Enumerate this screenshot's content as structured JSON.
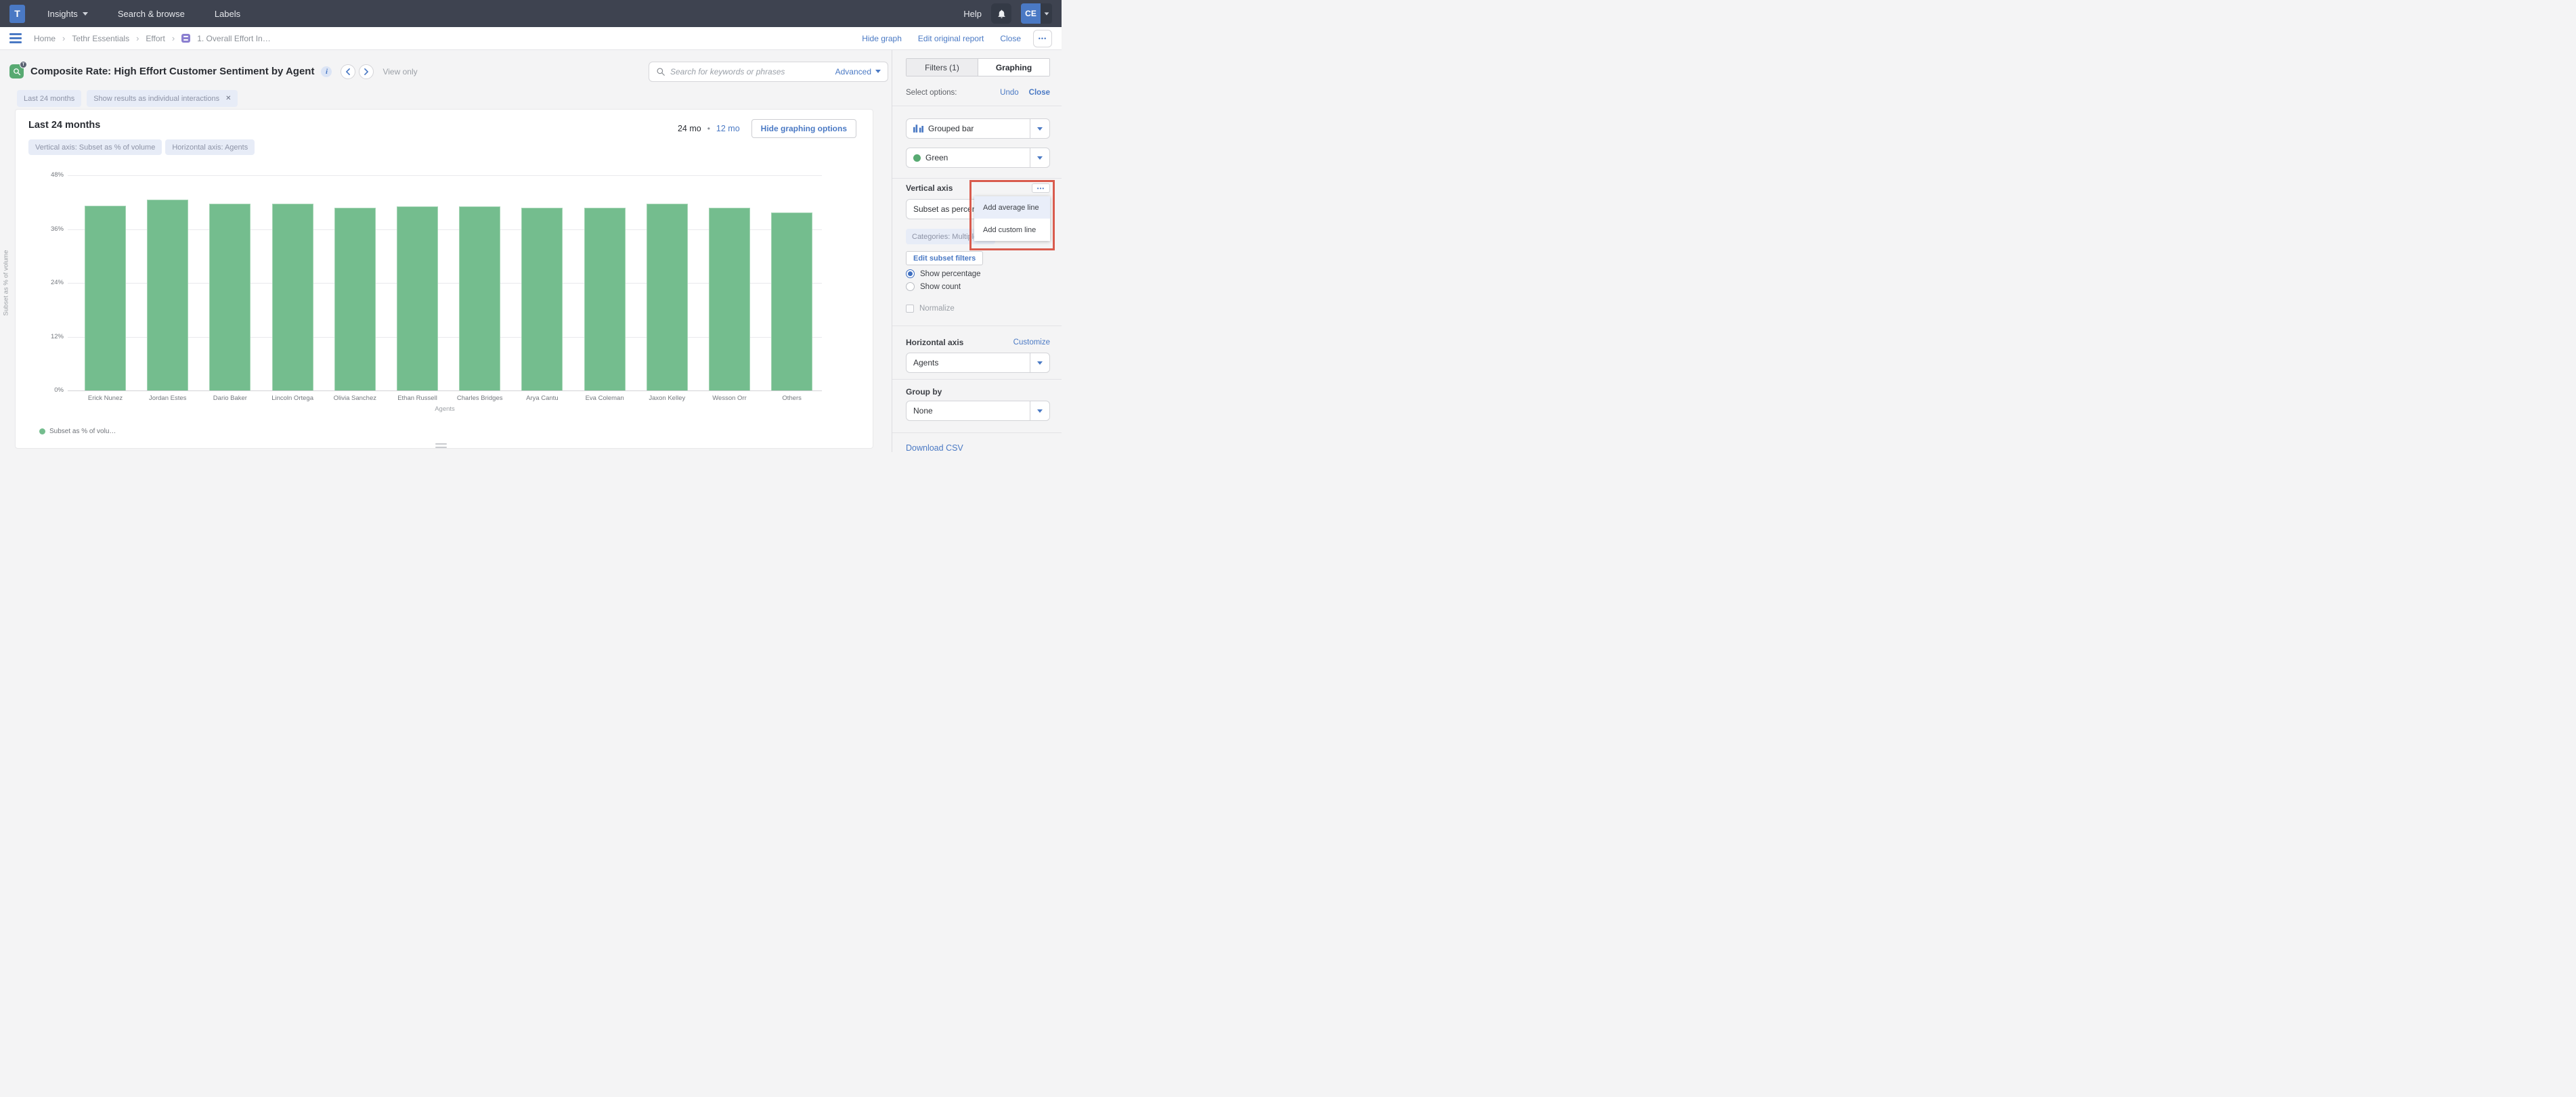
{
  "topnav": {
    "logo": "T",
    "insights": "Insights",
    "search_browse": "Search & browse",
    "labels": "Labels",
    "help": "Help",
    "avatar": "CE"
  },
  "breadcrumb": {
    "separator": "›",
    "items": [
      "Home",
      "Tethr Essentials",
      "Effort"
    ],
    "current": "1. Overall Effort In…",
    "hide_graph": "Hide graph",
    "edit_original": "Edit original report",
    "close": "Close",
    "more": "•••"
  },
  "titlebar": {
    "title": "Composite Rate: High Effort Customer Sentiment by Agent",
    "info_glyph": "i",
    "view_only": "View only",
    "search_placeholder": "Search for keywords or phrases",
    "advanced": "Advanced"
  },
  "tabs": {
    "filters": "Filters (1)",
    "graphing": "Graphing"
  },
  "filter_chips": {
    "time_range": "Last 24 months",
    "individual": "Show results as individual interactions",
    "remove_glyph": "✕"
  },
  "card": {
    "title": "Last 24 months",
    "range_current": "24 mo",
    "range_sep": "•",
    "range_alt": "12 mo",
    "hide_graphing": "Hide graphing options",
    "vertical_chip": "Vertical axis: Subset as % of volume",
    "horizontal_chip": "Horizontal axis: Agents",
    "legend": "Subset as % of volu…"
  },
  "chart_data": {
    "type": "bar",
    "title": "Last 24 months",
    "ylabel": "Subset as % of volume",
    "xlabel": "Agents",
    "ylim": [
      0,
      48
    ],
    "yticks": [
      "48%",
      "36%",
      "24%",
      "12%",
      "0%"
    ],
    "grid": true,
    "legend_position": "bottom-left",
    "series_name": "Subset as % of volume",
    "bar_color": "#74bd8e",
    "categories": [
      "Erick Nunez",
      "Jordan Estes",
      "Dario Baker",
      "Lincoln Ortega",
      "Olivia Sanchez",
      "Ethan Russell",
      "Charles Bridges",
      "Arya Cantu",
      "Eva Coleman",
      "Jaxon Kelley",
      "Wesson Orr",
      "Others"
    ],
    "values": [
      41.2,
      42.5,
      41.7,
      41.6,
      40.7,
      41.1,
      41.1,
      40.7,
      40.8,
      41.6,
      40.8,
      39.7
    ]
  },
  "sidebar": {
    "select_options": "Select options:",
    "undo": "Undo",
    "close": "Close",
    "chart_type": "Grouped bar",
    "color_scheme": "Green",
    "vertical_axis_label": "Vertical axis",
    "options_dots": "•••",
    "menu": {
      "add_average": "Add average line",
      "add_custom": "Add custom line"
    },
    "subset_value": "Subset as percenta",
    "categories_chip": "Categories: Multiple",
    "edit_subset": "Edit subset filters",
    "show_percentage": "Show percentage",
    "show_count": "Show count",
    "normalize": "Normalize",
    "horizontal_axis_label": "Horizontal axis",
    "customize": "Customize",
    "horizontal_value": "Agents",
    "group_by_label": "Group by",
    "group_by_value": "None",
    "download_csv": "Download CSV"
  },
  "colors": {
    "accent_blue": "#4a79c4",
    "bar_green": "#74bd8e",
    "highlight_red": "#d95b4d",
    "topnav_bg": "#3e4350",
    "chip_bg": "#e7ecf7"
  }
}
